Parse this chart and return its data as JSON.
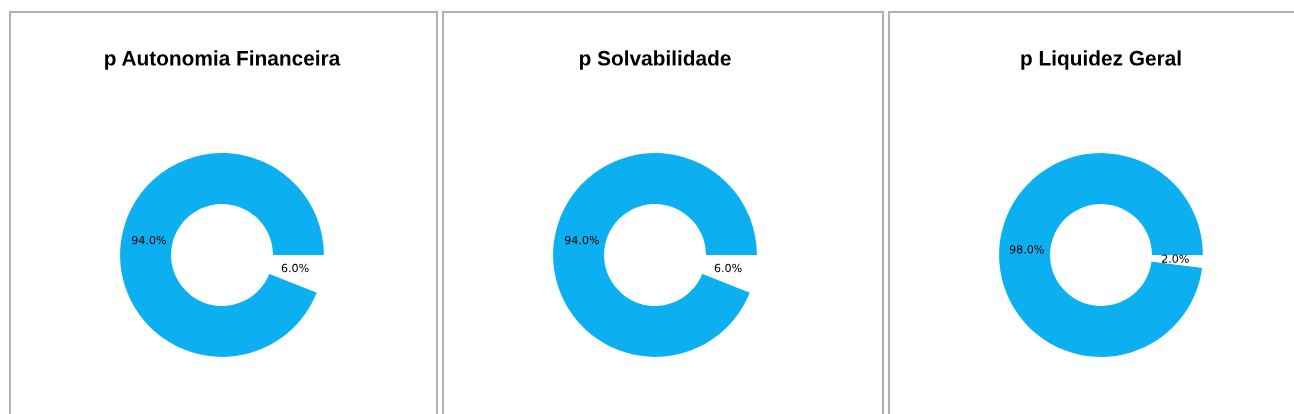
{
  "chart_data": [
    {
      "type": "donut",
      "title": "p Autonomia Financeira",
      "categories": [
        null,
        null
      ],
      "values": [
        94.0,
        6.0
      ],
      "value_labels": [
        "94.0%",
        "6.0%"
      ],
      "colors": [
        "#0cb0f0",
        "#ffffff"
      ]
    },
    {
      "type": "donut",
      "title": "p Solvabilidade",
      "categories": [
        null,
        null
      ],
      "values": [
        94.0,
        6.0
      ],
      "value_labels": [
        "94.0%",
        "6.0%"
      ],
      "colors": [
        "#0cb0f0",
        "#ffffff"
      ]
    },
    {
      "type": "donut",
      "title": "p Liquidez Geral",
      "categories": [
        null,
        null
      ],
      "values": [
        98.0,
        2.0
      ],
      "value_labels": [
        "98.0%",
        "2.0%"
      ],
      "colors": [
        "#0cb0f0",
        "#ffffff"
      ]
    }
  ]
}
